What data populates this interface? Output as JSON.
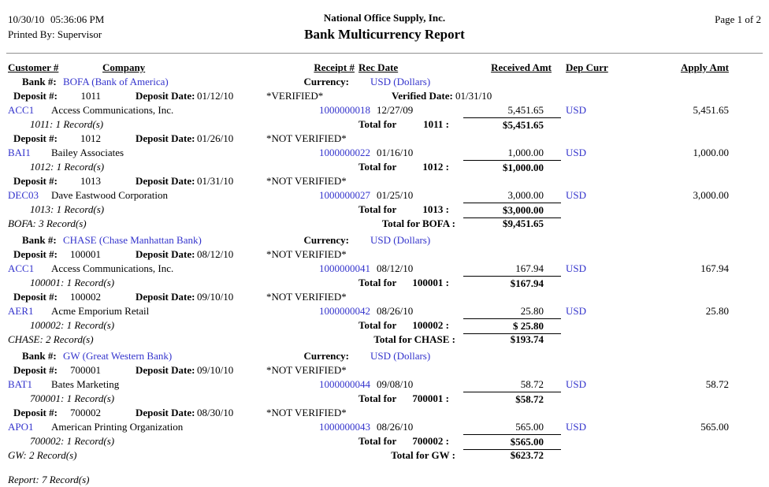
{
  "header": {
    "date": "10/30/10",
    "time": "05:36:06 PM",
    "printed_by": "Printed By: Supervisor",
    "company": "National Office Supply, Inc.",
    "title": "Bank Multicurrency Report",
    "page": "Page 1 of 2"
  },
  "columns": {
    "customer": "Customer #",
    "company": "Company",
    "receipt": "Receipt #",
    "rec_date": "Rec Date",
    "received_amt": "Received Amt",
    "dep_curr": "Dep Curr",
    "apply_amt": "Apply Amt"
  },
  "labels": {
    "bank": "Bank #:",
    "currency": "Currency:",
    "deposit": "Deposit #:",
    "deposit_date": "Deposit Date:",
    "verified_date": "Verified Date:",
    "total_for": "Total for"
  },
  "banks": [
    {
      "name": "BOFA (Bank of America)",
      "currency": "USD (Dollars)",
      "records": "BOFA: 3 Record(s)",
      "total_label": "Total for BOFA :",
      "total": "$9,451.65",
      "deposits": [
        {
          "number": "1011",
          "date": "01/12/10",
          "status": "*VERIFIED*",
          "verified_date": "01/31/10",
          "customer": "ACC1",
          "company": "Access Communications, Inc.",
          "receipt": "1000000018",
          "rec_date": "12/27/09",
          "received": "5,451.65",
          "curr": "USD",
          "apply": "5,451.65",
          "records": "1011: 1 Record(s)",
          "total_num": "1011 :",
          "total": "$5,451.65"
        },
        {
          "number": "1012",
          "date": "01/26/10",
          "status": "*NOT VERIFIED*",
          "customer": "BAI1",
          "company": "Bailey Associates",
          "receipt": "1000000022",
          "rec_date": "01/16/10",
          "received": "1,000.00",
          "curr": "USD",
          "apply": "1,000.00",
          "records": "1012: 1 Record(s)",
          "total_num": "1012 :",
          "total": "$1,000.00"
        },
        {
          "number": "1013",
          "date": "01/31/10",
          "status": "*NOT VERIFIED*",
          "customer": "DEC03",
          "company": "Dave Eastwood Corporation",
          "receipt": "1000000027",
          "rec_date": "01/25/10",
          "received": "3,000.00",
          "curr": "USD",
          "apply": "3,000.00",
          "records": "1013: 1 Record(s)",
          "total_num": "1013 :",
          "total": "$3,000.00"
        }
      ]
    },
    {
      "name": "CHASE (Chase Manhattan Bank)",
      "currency": "USD (Dollars)",
      "records": "CHASE: 2 Record(s)",
      "total_label": "Total for CHASE :",
      "total": "$193.74",
      "deposits": [
        {
          "number": "100001",
          "date": "08/12/10",
          "status": "*NOT VERIFIED*",
          "customer": "ACC1",
          "company": "Access Communications, Inc.",
          "receipt": "1000000041",
          "rec_date": "08/12/10",
          "received": "167.94",
          "curr": "USD",
          "apply": "167.94",
          "records": "100001: 1 Record(s)",
          "total_num": "100001 :",
          "total": "$167.94"
        },
        {
          "number": "100002",
          "date": "09/10/10",
          "status": "*NOT VERIFIED*",
          "customer": "AER1",
          "company": "Acme Emporium Retail",
          "receipt": "1000000042",
          "rec_date": "08/26/10",
          "received": "25.80",
          "curr": "USD",
          "apply": "25.80",
          "records": "100002: 1 Record(s)",
          "total_num": "100002 :",
          "total": "$ 25.80"
        }
      ]
    },
    {
      "name": "GW (Great Western Bank)",
      "currency": "USD (Dollars)",
      "records": "GW: 2 Record(s)",
      "total_label": "Total for GW :",
      "total": "$623.72",
      "deposits": [
        {
          "number": "700001",
          "date": "09/10/10",
          "status": "*NOT VERIFIED*",
          "customer": "BAT1",
          "company": "Bates Marketing",
          "receipt": "1000000044",
          "rec_date": "09/08/10",
          "received": "58.72",
          "curr": "USD",
          "apply": "58.72",
          "records": "700001: 1 Record(s)",
          "total_num": "700001 :",
          "total": "$58.72"
        },
        {
          "number": "700002",
          "date": "08/30/10",
          "status": "*NOT VERIFIED*",
          "customer": "APO1",
          "company": "American Printing Organization",
          "receipt": "1000000043",
          "rec_date": "08/26/10",
          "received": "565.00",
          "curr": "USD",
          "apply": "565.00",
          "records": "700002: 1 Record(s)",
          "total_num": "700002 :",
          "total": "$565.00"
        }
      ]
    }
  ],
  "report_records": "Report: 7 Record(s)",
  "colors": {
    "link": "#3333cc",
    "text": "#000000",
    "rule": "#909090"
  }
}
